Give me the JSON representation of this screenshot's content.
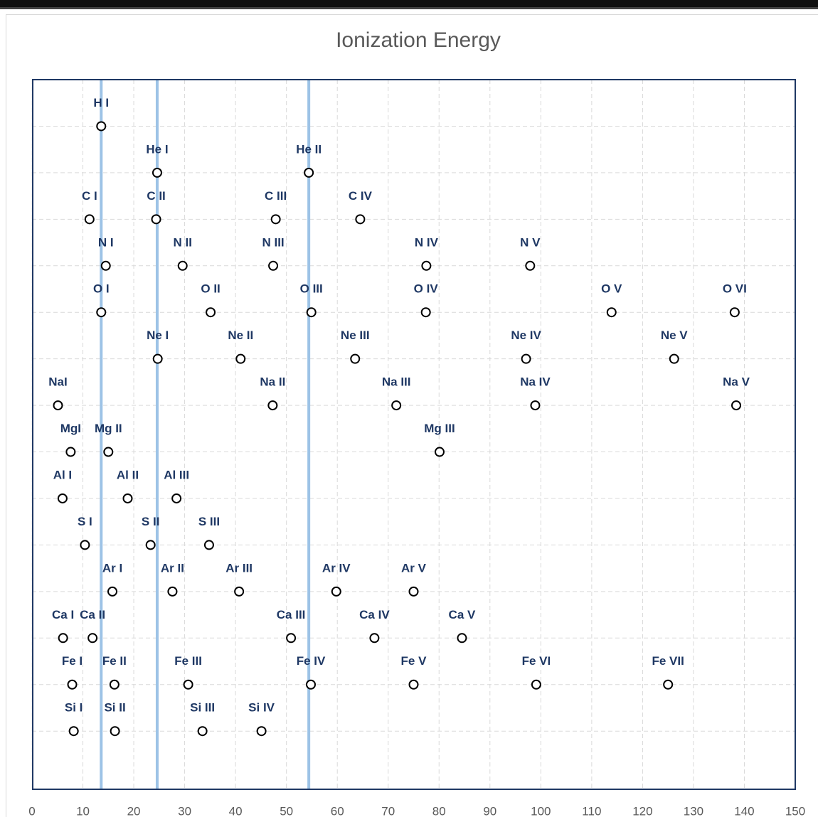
{
  "chart_data": {
    "type": "scatter",
    "title": "Ionization Energy",
    "xlim": [
      0,
      150
    ],
    "xticks": [
      0,
      10,
      20,
      30,
      40,
      50,
      60,
      70,
      80,
      90,
      100,
      110,
      120,
      130,
      140,
      150
    ],
    "ylim": [
      15.25,
      0
    ],
    "yticks": [
      1,
      2,
      3,
      4,
      5,
      6,
      7,
      8,
      9,
      10,
      11,
      12,
      13,
      14
    ],
    "y_tick_labels": false,
    "grid": true,
    "marker_color": "#000000",
    "label_color": "#1f3864",
    "vlines": {
      "color": "#9dc3e6",
      "values": [
        13.6,
        24.6,
        54.4
      ]
    },
    "points": [
      {
        "label": "H I",
        "x": 13.6,
        "y": 1
      },
      {
        "label": "He I",
        "x": 24.6,
        "y": 2
      },
      {
        "label": "He II",
        "x": 54.4,
        "y": 2
      },
      {
        "label": "C I",
        "x": 11.3,
        "y": 3
      },
      {
        "label": "C II",
        "x": 24.4,
        "y": 3
      },
      {
        "label": "C III",
        "x": 47.9,
        "y": 3
      },
      {
        "label": "C IV",
        "x": 64.5,
        "y": 3
      },
      {
        "label": "N I",
        "x": 14.5,
        "y": 4
      },
      {
        "label": "N II",
        "x": 29.6,
        "y": 4
      },
      {
        "label": "N III",
        "x": 47.4,
        "y": 4
      },
      {
        "label": "N IV",
        "x": 77.5,
        "y": 4
      },
      {
        "label": "N V",
        "x": 97.9,
        "y": 4
      },
      {
        "label": "O I",
        "x": 13.6,
        "y": 5
      },
      {
        "label": "O II",
        "x": 35.1,
        "y": 5
      },
      {
        "label": "O III",
        "x": 54.9,
        "y": 5
      },
      {
        "label": "O IV",
        "x": 77.4,
        "y": 5
      },
      {
        "label": "O V",
        "x": 113.9,
        "y": 5
      },
      {
        "label": "O VI",
        "x": 138.1,
        "y": 5
      },
      {
        "label": "Ne I",
        "x": 24.7,
        "y": 6
      },
      {
        "label": "Ne II",
        "x": 41.0,
        "y": 6
      },
      {
        "label": "Ne III",
        "x": 63.5,
        "y": 6
      },
      {
        "label": "Ne IV",
        "x": 97.1,
        "y": 6
      },
      {
        "label": "Ne V",
        "x": 126.2,
        "y": 6
      },
      {
        "label": "NaI",
        "x": 5.1,
        "y": 7
      },
      {
        "label": "Na II",
        "x": 47.3,
        "y": 7
      },
      {
        "label": "Na III",
        "x": 71.6,
        "y": 7
      },
      {
        "label": "Na IV",
        "x": 98.9,
        "y": 7
      },
      {
        "label": "Na V",
        "x": 138.4,
        "y": 7
      },
      {
        "label": "MgI",
        "x": 7.6,
        "y": 8
      },
      {
        "label": "Mg II",
        "x": 15.0,
        "y": 8
      },
      {
        "label": "Mg III",
        "x": 80.1,
        "y": 8
      },
      {
        "label": "Al I",
        "x": 6.0,
        "y": 9
      },
      {
        "label": "Al II",
        "x": 18.8,
        "y": 9
      },
      {
        "label": "Al III",
        "x": 28.4,
        "y": 9
      },
      {
        "label": "S I",
        "x": 10.4,
        "y": 10
      },
      {
        "label": "S II",
        "x": 23.3,
        "y": 10
      },
      {
        "label": "S III",
        "x": 34.8,
        "y": 10
      },
      {
        "label": "Ar I",
        "x": 15.8,
        "y": 11
      },
      {
        "label": "Ar II",
        "x": 27.6,
        "y": 11
      },
      {
        "label": "Ar III",
        "x": 40.7,
        "y": 11
      },
      {
        "label": "Ar IV",
        "x": 59.8,
        "y": 11
      },
      {
        "label": "Ar V",
        "x": 75.0,
        "y": 11
      },
      {
        "label": "Ca I",
        "x": 6.1,
        "y": 12
      },
      {
        "label": "Ca II",
        "x": 11.9,
        "y": 12
      },
      {
        "label": "Ca III",
        "x": 50.9,
        "y": 12
      },
      {
        "label": "Ca IV",
        "x": 67.3,
        "y": 12
      },
      {
        "label": "Ca V",
        "x": 84.5,
        "y": 12
      },
      {
        "label": "Fe I",
        "x": 7.9,
        "y": 13
      },
      {
        "label": "Fe II",
        "x": 16.2,
        "y": 13
      },
      {
        "label": "Fe III",
        "x": 30.7,
        "y": 13
      },
      {
        "label": "Fe IV",
        "x": 54.8,
        "y": 13
      },
      {
        "label": "Fe V",
        "x": 75.0,
        "y": 13
      },
      {
        "label": "Fe VI",
        "x": 99.1,
        "y": 13
      },
      {
        "label": "Fe VII",
        "x": 125.0,
        "y": 13
      },
      {
        "label": "Si I",
        "x": 8.2,
        "y": 14
      },
      {
        "label": "Si II",
        "x": 16.3,
        "y": 14
      },
      {
        "label": "Si III",
        "x": 33.5,
        "y": 14
      },
      {
        "label": "Si IV",
        "x": 45.1,
        "y": 14
      }
    ]
  }
}
